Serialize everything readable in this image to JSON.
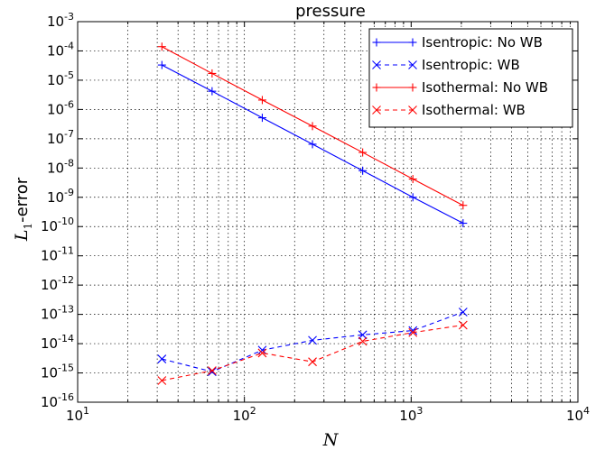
{
  "chart_data": {
    "type": "line",
    "title": "pressure",
    "xlabel": "N",
    "ylabel_main": "L",
    "ylabel_sub": "1",
    "ylabel_rest": "-error",
    "xscale": "log",
    "yscale": "log",
    "xlim": [
      10,
      10000
    ],
    "ylim": [
      1e-16,
      0.001
    ],
    "grid": true,
    "legend_position": "top-right",
    "x_ticks": [
      {
        "value": 10,
        "base": "10",
        "exp": "1"
      },
      {
        "value": 100,
        "base": "10",
        "exp": "2"
      },
      {
        "value": 1000,
        "base": "10",
        "exp": "3"
      },
      {
        "value": 10000,
        "base": "10",
        "exp": "4"
      }
    ],
    "y_ticks": [
      {
        "value": 1e-16,
        "base": "10",
        "exp": "-16"
      },
      {
        "value": 1e-15,
        "base": "10",
        "exp": "-15"
      },
      {
        "value": 1e-14,
        "base": "10",
        "exp": "-14"
      },
      {
        "value": 1e-13,
        "base": "10",
        "exp": "-13"
      },
      {
        "value": 1e-12,
        "base": "10",
        "exp": "-12"
      },
      {
        "value": 1e-11,
        "base": "10",
        "exp": "-11"
      },
      {
        "value": 1e-10,
        "base": "10",
        "exp": "-10"
      },
      {
        "value": 1e-09,
        "base": "10",
        "exp": "-9"
      },
      {
        "value": 1e-08,
        "base": "10",
        "exp": "-8"
      },
      {
        "value": 1e-07,
        "base": "10",
        "exp": "-7"
      },
      {
        "value": 1e-06,
        "base": "10",
        "exp": "-6"
      },
      {
        "value": 1e-05,
        "base": "10",
        "exp": "-5"
      },
      {
        "value": 0.0001,
        "base": "10",
        "exp": "-4"
      },
      {
        "value": 0.001,
        "base": "10",
        "exp": "-3"
      }
    ],
    "series": [
      {
        "name": "Isentropic: No WB",
        "color": "#0000ff",
        "marker": "plus",
        "linestyle": "solid",
        "x": [
          32,
          64,
          128,
          256,
          512,
          1024,
          2048
        ],
        "y": [
          3.3e-05,
          4.2e-06,
          5.2e-07,
          6.5e-08,
          8.1e-09,
          1e-09,
          1.3e-10
        ]
      },
      {
        "name": "Isentropic: WB",
        "color": "#0000ff",
        "marker": "x",
        "linestyle": "dashed",
        "x": [
          32,
          64,
          128,
          256,
          512,
          1024,
          2048
        ],
        "y": [
          3e-15,
          1.1e-15,
          6e-15,
          1.3e-14,
          2e-14,
          2.8e-14,
          1.2e-13
        ]
      },
      {
        "name": "Isothermal: No WB",
        "color": "#ff0000",
        "marker": "plus",
        "linestyle": "solid",
        "x": [
          32,
          64,
          128,
          256,
          512,
          1024,
          2048
        ],
        "y": [
          0.00014,
          1.7e-05,
          2.1e-06,
          2.7e-07,
          3.4e-08,
          4.2e-09,
          5.3e-10
        ]
      },
      {
        "name": "Isothermal: WB",
        "color": "#ff0000",
        "marker": "x",
        "linestyle": "dashed",
        "x": [
          32,
          64,
          128,
          256,
          512,
          1024,
          2048
        ],
        "y": [
          5.5e-16,
          1.2e-15,
          4.8e-15,
          2.4e-15,
          1.2e-14,
          2.4e-14,
          4.3e-14
        ]
      }
    ]
  }
}
